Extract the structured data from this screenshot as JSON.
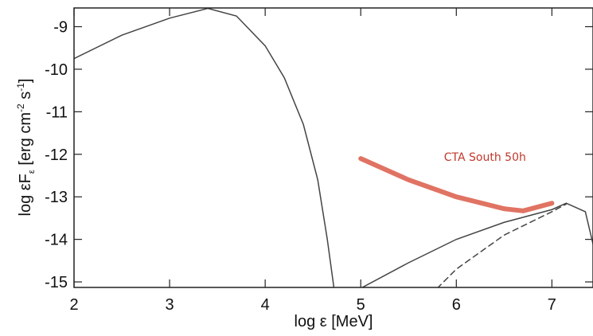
{
  "chart_data": {
    "type": "line",
    "xlabel": "log ε [MeV]",
    "ylabel_parts": [
      "log εF",
      "ε",
      " [erg cm",
      "-2",
      " s",
      "-1",
      "]"
    ],
    "xlim": [
      2,
      7.43
    ],
    "ylim": [
      -15.13,
      -8.56
    ],
    "xticks": [
      2,
      3,
      4,
      5,
      6,
      7
    ],
    "yticks": [
      -15,
      -14,
      -13,
      -12,
      -11,
      -10,
      -9
    ],
    "series": [
      {
        "color": "#444444",
        "dash": false,
        "width": 1.5,
        "x": [
          2,
          2.5,
          3,
          3.4,
          3.7,
          4,
          4.2,
          4.4,
          4.55,
          4.65,
          4.72
        ],
        "values": [
          -9.75,
          -9.2,
          -8.8,
          -8.57,
          -8.75,
          -9.45,
          -10.2,
          -11.3,
          -12.6,
          -14,
          -15.15
        ]
      },
      {
        "color": "#444444",
        "dash": false,
        "width": 1.5,
        "x": [
          5,
          5.5,
          6,
          6.5,
          7,
          7.15,
          7.35,
          7.45
        ],
        "values": [
          -15.15,
          -14.55,
          -14.0,
          -13.6,
          -13.3,
          -13.15,
          -13.35,
          -14.3
        ]
      },
      {
        "color": "#444444",
        "dash": true,
        "width": 1.5,
        "x": [
          5.8,
          6,
          6.5,
          7,
          7.15
        ],
        "values": [
          -15.15,
          -14.7,
          -13.9,
          -13.35,
          -13.17
        ]
      },
      {
        "color": "#e07363",
        "dash": false,
        "width": 6,
        "x": [
          5,
          5.5,
          6,
          6.5,
          6.7,
          7
        ],
        "values": [
          -12.1,
          -12.6,
          -13.0,
          -13.28,
          -13.33,
          -13.15
        ]
      }
    ],
    "annotation": {
      "text": "CTA South 50h",
      "x": 6.3,
      "y": -12.15,
      "color": "#c0392b"
    }
  }
}
